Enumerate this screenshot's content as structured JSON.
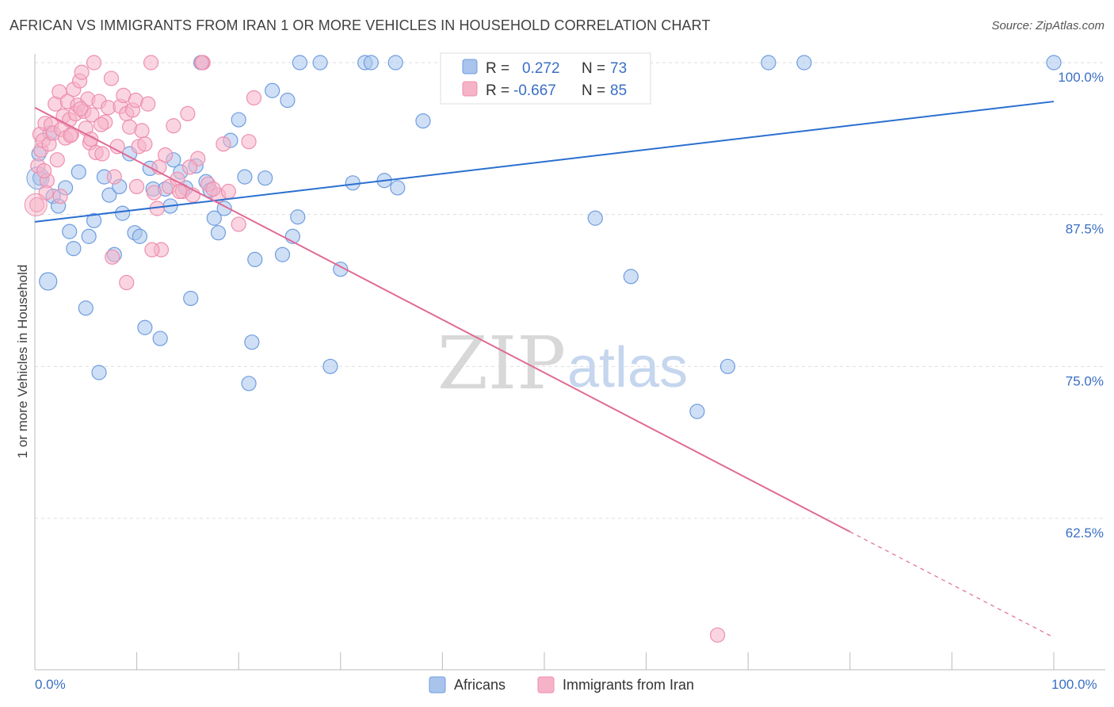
{
  "title": "AFRICAN VS IMMIGRANTS FROM IRAN 1 OR MORE VEHICLES IN HOUSEHOLD CORRELATION CHART",
  "source": "Source: ZipAtlas.com",
  "watermark": {
    "zip": "ZIP",
    "atlas": "atlas"
  },
  "legend": {
    "r_label": "R =",
    "n_label": "N =",
    "africans": {
      "r": "0.272",
      "n": "73"
    },
    "iran": {
      "r": "-0.667",
      "n": "85"
    }
  },
  "bottom_legend": {
    "africans": "Africans",
    "iran": "Immigrants from Iran"
  },
  "colors": {
    "africans_fill": "#a8c4ec",
    "africans_stroke": "#6f9de0",
    "africans_line": "#2a6fd0",
    "iran_fill": "#f6b3c8",
    "iran_stroke": "#ee8fae",
    "iran_line": "#e06a95"
  },
  "chart_data": {
    "type": "scatter",
    "xlabel": "",
    "ylabel": "1 or more Vehicles in Household",
    "xlim": [
      0,
      100
    ],
    "ylim": [
      50,
      101
    ],
    "x_tick_labels": [
      "0.0%",
      "100.0%"
    ],
    "y_ticks": [
      62.5,
      75.0,
      87.5,
      100.0
    ],
    "y_tick_labels": [
      "62.5%",
      "75.0%",
      "87.5%",
      "100.0%"
    ],
    "series": [
      {
        "name": "Africans",
        "r": 0.272,
        "n": 73,
        "trend": {
          "x": [
            0,
            100
          ],
          "y": [
            86.9,
            96.8
          ]
        },
        "points": [
          [
            0.4,
            92.5
          ],
          [
            0.5,
            90.5
          ],
          [
            1.3,
            82.0
          ],
          [
            1.8,
            89.0
          ],
          [
            2.3,
            88.2
          ],
          [
            3.0,
            89.7
          ],
          [
            3.4,
            86.1
          ],
          [
            3.8,
            84.7
          ],
          [
            4.3,
            91.0
          ],
          [
            5.0,
            79.8
          ],
          [
            5.3,
            85.7
          ],
          [
            5.8,
            87.0
          ],
          [
            6.3,
            74.5
          ],
          [
            6.8,
            90.6
          ],
          [
            7.3,
            89.1
          ],
          [
            7.8,
            84.2
          ],
          [
            8.3,
            89.8
          ],
          [
            8.6,
            87.6
          ],
          [
            9.3,
            92.5
          ],
          [
            9.8,
            86.0
          ],
          [
            10.3,
            85.7
          ],
          [
            10.8,
            78.2
          ],
          [
            11.3,
            91.3
          ],
          [
            11.6,
            89.6
          ],
          [
            12.3,
            77.3
          ],
          [
            12.8,
            89.6
          ],
          [
            13.3,
            88.2
          ],
          [
            13.6,
            92.0
          ],
          [
            14.3,
            91.0
          ],
          [
            14.8,
            89.7
          ],
          [
            15.3,
            80.6
          ],
          [
            15.8,
            91.5
          ],
          [
            16.3,
            100.0
          ],
          [
            16.8,
            90.2
          ],
          [
            17.2,
            89.5
          ],
          [
            17.6,
            87.2
          ],
          [
            18.0,
            86.0
          ],
          [
            18.6,
            88.0
          ],
          [
            19.2,
            93.6
          ],
          [
            20.0,
            95.3
          ],
          [
            20.6,
            90.6
          ],
          [
            21.0,
            73.6
          ],
          [
            21.3,
            77.0
          ],
          [
            21.6,
            83.8
          ],
          [
            22.6,
            90.5
          ],
          [
            23.3,
            97.7
          ],
          [
            24.3,
            84.2
          ],
          [
            24.8,
            96.9
          ],
          [
            25.3,
            85.7
          ],
          [
            25.8,
            87.3
          ],
          [
            28.0,
            100.0
          ],
          [
            29.0,
            75.0
          ],
          [
            30.0,
            83.0
          ],
          [
            31.2,
            90.1
          ],
          [
            32.4,
            100.0
          ],
          [
            33.0,
            100.0
          ],
          [
            34.3,
            90.3
          ],
          [
            35.4,
            100.0
          ],
          [
            35.6,
            89.7
          ],
          [
            38.1,
            95.2
          ],
          [
            41.0,
            97.5
          ],
          [
            42.0,
            100.0
          ],
          [
            53.0,
            100.0
          ],
          [
            55.0,
            87.2
          ],
          [
            58.0,
            100.0
          ],
          [
            58.5,
            82.4
          ],
          [
            65.0,
            71.3
          ],
          [
            68.0,
            75.0
          ],
          [
            72.0,
            100.0
          ],
          [
            75.5,
            100.0
          ],
          [
            100.0,
            100.0
          ],
          [
            26.0,
            100.0
          ],
          [
            1.5,
            94.2
          ]
        ]
      },
      {
        "name": "Immigrants from Iran",
        "r": -0.667,
        "n": 85,
        "trend": {
          "x": [
            0,
            80
          ],
          "y": [
            96.3,
            61.4
          ]
        },
        "trend_dashed": {
          "x": [
            80,
            100
          ],
          "y": [
            61.4,
            52.7
          ]
        },
        "points": [
          [
            0.2,
            88.3
          ],
          [
            0.3,
            91.5
          ],
          [
            0.5,
            94.1
          ],
          [
            0.6,
            92.8
          ],
          [
            0.8,
            93.6
          ],
          [
            1.0,
            95.0
          ],
          [
            1.2,
            90.3
          ],
          [
            1.4,
            93.3
          ],
          [
            1.6,
            94.9
          ],
          [
            1.8,
            94.2
          ],
          [
            2.0,
            96.6
          ],
          [
            2.2,
            92.0
          ],
          [
            2.4,
            97.6
          ],
          [
            2.6,
            94.5
          ],
          [
            2.8,
            95.6
          ],
          [
            3.0,
            93.8
          ],
          [
            3.2,
            96.8
          ],
          [
            3.4,
            95.3
          ],
          [
            3.6,
            94.1
          ],
          [
            3.8,
            97.8
          ],
          [
            4.0,
            95.8
          ],
          [
            4.2,
            96.5
          ],
          [
            4.4,
            98.5
          ],
          [
            4.6,
            99.2
          ],
          [
            4.8,
            96.0
          ],
          [
            5.0,
            94.6
          ],
          [
            5.2,
            97.0
          ],
          [
            5.4,
            93.4
          ],
          [
            5.6,
            95.7
          ],
          [
            5.8,
            100.0
          ],
          [
            6.0,
            92.6
          ],
          [
            6.3,
            96.8
          ],
          [
            6.6,
            92.5
          ],
          [
            6.9,
            95.1
          ],
          [
            7.2,
            96.3
          ],
          [
            7.5,
            98.7
          ],
          [
            7.8,
            90.6
          ],
          [
            8.1,
            93.1
          ],
          [
            8.4,
            96.4
          ],
          [
            8.7,
            97.3
          ],
          [
            9.0,
            95.8
          ],
          [
            9.3,
            94.7
          ],
          [
            9.6,
            96.1
          ],
          [
            9.9,
            96.9
          ],
          [
            10.2,
            93.1
          ],
          [
            10.5,
            94.4
          ],
          [
            10.8,
            93.3
          ],
          [
            11.1,
            96.6
          ],
          [
            11.4,
            100.0
          ],
          [
            11.7,
            89.3
          ],
          [
            12.0,
            88.0
          ],
          [
            12.4,
            84.6
          ],
          [
            12.8,
            92.4
          ],
          [
            13.2,
            89.8
          ],
          [
            13.6,
            94.8
          ],
          [
            14.0,
            90.4
          ],
          [
            14.5,
            89.4
          ],
          [
            15.0,
            95.8
          ],
          [
            15.5,
            89.1
          ],
          [
            16.0,
            92.1
          ],
          [
            16.5,
            100.0
          ],
          [
            17.0,
            90.0
          ],
          [
            18.0,
            89.1
          ],
          [
            18.5,
            93.3
          ],
          [
            19.0,
            89.4
          ],
          [
            20.0,
            86.7
          ],
          [
            21.0,
            93.5
          ],
          [
            21.5,
            97.1
          ],
          [
            7.6,
            84.0
          ],
          [
            9.0,
            81.9
          ],
          [
            11.5,
            84.6
          ],
          [
            16.4,
            100.0
          ],
          [
            0.9,
            91.1
          ],
          [
            1.1,
            89.3
          ],
          [
            2.5,
            89.0
          ],
          [
            3.5,
            94.0
          ],
          [
            4.5,
            96.2
          ],
          [
            5.5,
            93.7
          ],
          [
            6.5,
            94.9
          ],
          [
            10.0,
            89.8
          ],
          [
            12.2,
            91.4
          ],
          [
            14.2,
            89.4
          ],
          [
            15.2,
            91.4
          ],
          [
            17.5,
            89.6
          ],
          [
            67.0,
            52.9
          ]
        ]
      }
    ]
  }
}
